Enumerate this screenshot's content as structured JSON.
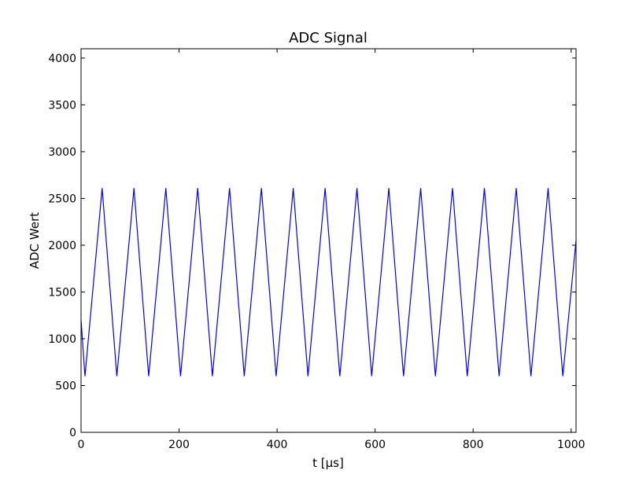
{
  "chart_data": {
    "type": "line",
    "title": "ADC Signal",
    "xlabel": "t [µs]",
    "ylabel": "ADC Wert",
    "xlim": [
      0,
      1010
    ],
    "ylim": [
      0,
      4100
    ],
    "xticks": [
      0,
      200,
      400,
      600,
      800,
      1000
    ],
    "yticks": [
      0,
      500,
      1000,
      1500,
      2000,
      2500,
      3000,
      3500,
      4000
    ],
    "grid": false,
    "series": [
      {
        "color": "#0000ff",
        "x": [
          0,
          8,
          43,
          73,
          108,
          138,
          173,
          203,
          238,
          268,
          303,
          333,
          368,
          398,
          433,
          463,
          498,
          528,
          563,
          593,
          628,
          658,
          693,
          723,
          758,
          788,
          823,
          853,
          888,
          918,
          953,
          983,
          1010
        ],
        "y": [
          1200,
          600,
          2610,
          600,
          2610,
          600,
          2610,
          600,
          2610,
          600,
          2610,
          600,
          2610,
          600,
          2610,
          600,
          2610,
          600,
          2610,
          600,
          2610,
          600,
          2610,
          600,
          2610,
          600,
          2610,
          600,
          2610,
          600,
          2610,
          600,
          2050
        ]
      }
    ]
  }
}
